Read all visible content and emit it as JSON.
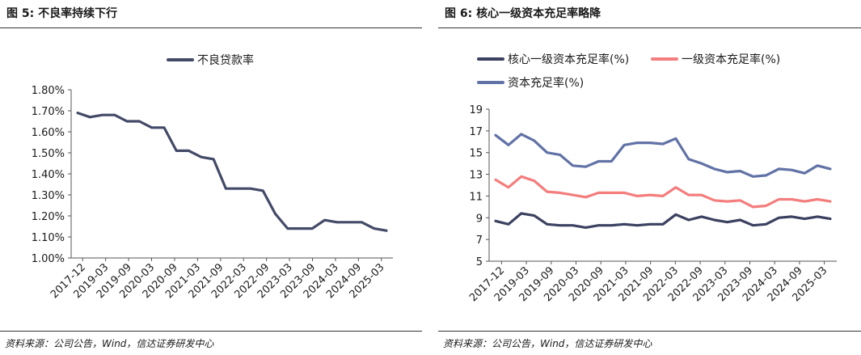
{
  "chart_data": [
    {
      "type": "line",
      "figure_label": "图 5:",
      "title": "不良率持续下行",
      "source": "资料来源：公司公告，Wind，信达证券研发中心",
      "y_format": "percent2",
      "ylim": [
        1.0,
        1.8
      ],
      "yticks": [
        1.0,
        1.1,
        1.2,
        1.3,
        1.4,
        1.5,
        1.6,
        1.7,
        1.8
      ],
      "x_tick_labels": [
        "2017-12",
        "2019-03",
        "2019-09",
        "2020-03",
        "2020-09",
        "2021-03",
        "2021-09",
        "2022-03",
        "2022-09",
        "2023-03",
        "2023-09",
        "2024-03",
        "2024-09",
        "2025-03"
      ],
      "series": [
        {
          "name": "不良贷款率",
          "color": "#434a68",
          "values": [
            1.69,
            1.67,
            1.68,
            1.68,
            1.65,
            1.65,
            1.62,
            1.62,
            1.51,
            1.51,
            1.48,
            1.47,
            1.33,
            1.33,
            1.33,
            1.32,
            1.21,
            1.14,
            1.14,
            1.14,
            1.18,
            1.17,
            1.17,
            1.17,
            1.14,
            1.13
          ]
        }
      ]
    },
    {
      "type": "line",
      "figure_label": "图 6:",
      "title": "核心一级资本充足率略降",
      "source": "资料来源：公司公告，Wind，信达证券研发中心",
      "y_format": "int",
      "ylim": [
        5,
        19
      ],
      "yticks": [
        5,
        7,
        9,
        11,
        13,
        15,
        17,
        19
      ],
      "x_tick_labels": [
        "2017-12",
        "2019-03",
        "2019-09",
        "2020-03",
        "2020-09",
        "2021-03",
        "2021-09",
        "2022-03",
        "2022-09",
        "2023-03",
        "2023-09",
        "2024-03",
        "2024-09",
        "2025-03"
      ],
      "series": [
        {
          "name": "核心一级资本充足率(%)",
          "color": "#3b4160",
          "values": [
            8.7,
            8.4,
            9.4,
            9.2,
            8.4,
            8.3,
            8.3,
            8.1,
            8.3,
            8.3,
            8.4,
            8.3,
            8.4,
            8.4,
            9.3,
            8.8,
            9.1,
            8.8,
            8.6,
            8.8,
            8.3,
            8.4,
            9.0,
            9.1,
            8.9,
            9.1,
            8.9
          ]
        },
        {
          "name": "一级资本充足率(%)",
          "color": "#f47d7d",
          "values": [
            12.5,
            11.8,
            12.8,
            12.4,
            11.4,
            11.3,
            11.1,
            10.9,
            11.3,
            11.3,
            11.3,
            11.0,
            11.1,
            11.0,
            11.8,
            11.1,
            11.1,
            10.6,
            10.5,
            10.6,
            10.0,
            10.1,
            10.7,
            10.7,
            10.5,
            10.7,
            10.5
          ]
        },
        {
          "name": "资本充足率(%)",
          "color": "#6172a6",
          "values": [
            16.6,
            15.7,
            16.7,
            16.1,
            15.0,
            14.8,
            13.8,
            13.7,
            14.2,
            14.2,
            15.7,
            15.9,
            15.9,
            15.8,
            16.3,
            14.4,
            14.0,
            13.5,
            13.2,
            13.3,
            12.8,
            12.9,
            13.5,
            13.4,
            13.1,
            13.8,
            13.5
          ]
        }
      ]
    }
  ]
}
